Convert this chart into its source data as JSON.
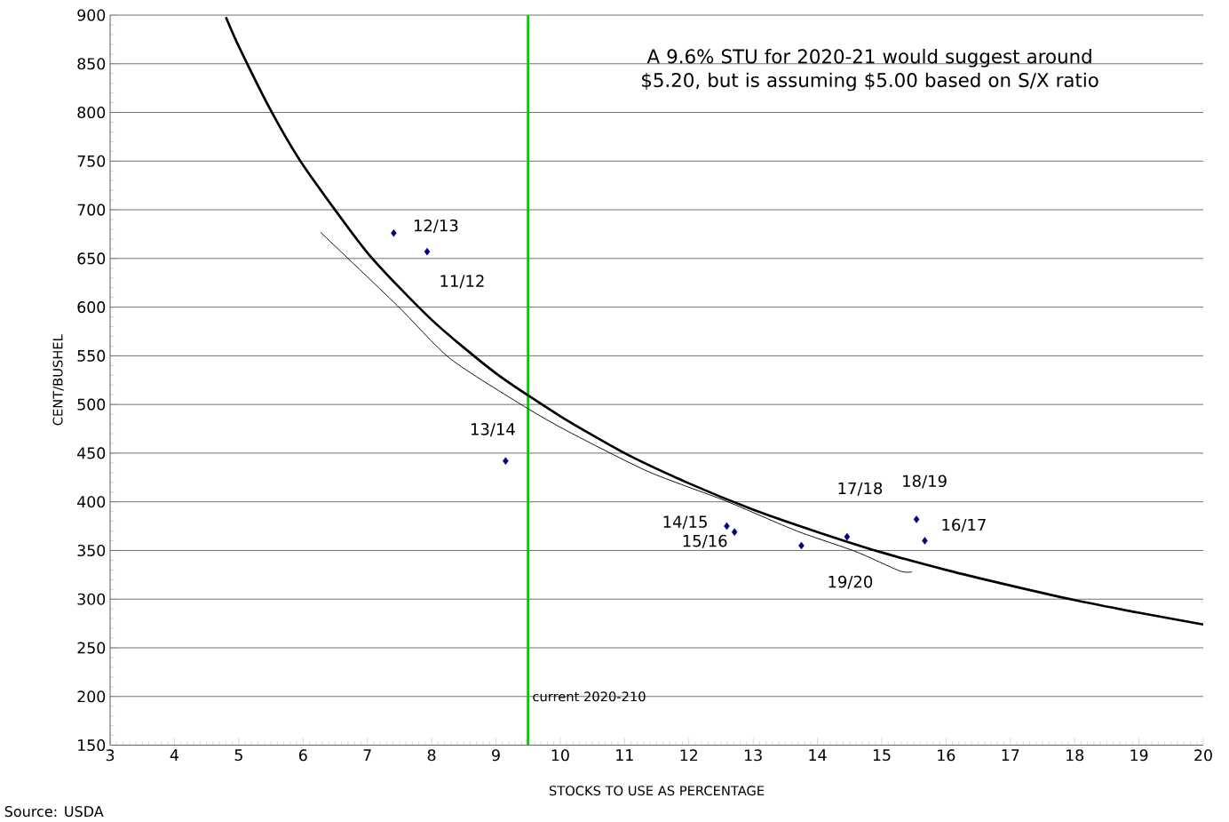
{
  "chart_data": {
    "type": "scatter",
    "xlabel": "STOCKS TO USE AS PERCENTAGE",
    "ylabel": "CENT/BUSHEL",
    "xlim": [
      3,
      20
    ],
    "ylim": [
      150,
      900
    ],
    "xticks": [
      3,
      4,
      5,
      6,
      7,
      8,
      9,
      10,
      11,
      12,
      13,
      14,
      15,
      16,
      17,
      18,
      19,
      20
    ],
    "yticks": [
      150,
      200,
      250,
      300,
      350,
      400,
      450,
      500,
      550,
      600,
      650,
      700,
      750,
      800,
      850,
      900
    ],
    "grid": "y",
    "series": [
      {
        "marker": "diamond",
        "color": "#000080",
        "x": [
          7.41,
          7.93,
          9.15,
          12.59,
          12.71,
          13.75,
          14.46,
          15.54,
          15.67
        ],
        "values": [
          676,
          657,
          442,
          375,
          369,
          355,
          364,
          382,
          360
        ]
      },
      {
        "type": "line",
        "color": "#000000",
        "x": [
          4.8,
          5,
          5.5,
          6,
          7,
          8,
          9,
          10,
          11,
          12,
          13,
          14,
          15,
          16,
          17,
          18,
          19,
          20
        ],
        "values": [
          898,
          868,
          802,
          746,
          656,
          587,
          532,
          488,
          450,
          419,
          392,
          369,
          348,
          330,
          314,
          299,
          286,
          274
        ]
      },
      {
        "type": "line",
        "color": "#000000",
        "x": [
          6.27,
          7.46,
          8.29,
          9.44,
          10.13,
          11.37,
          12.57,
          13.68,
          14.59,
          15.28,
          15.47
        ],
        "values": [
          677,
          602,
          547,
          498,
          472,
          431,
          401,
          370,
          349,
          329,
          328
        ]
      }
    ],
    "ref_lines": [
      {
        "axis": "x",
        "value": 9.5,
        "label": "current 2020-210",
        "color": "#00cc00"
      }
    ],
    "annotations": [
      "A 9.6% STU for 2020-21 would suggest around $5.20, but is assuming $5.00 based on S/X ratio",
      "Source: USDA",
      "12/13",
      "11/12",
      "13/14",
      "14/15",
      "15/16",
      "17/18",
      "18/19",
      "16/17",
      "19/20"
    ]
  }
}
